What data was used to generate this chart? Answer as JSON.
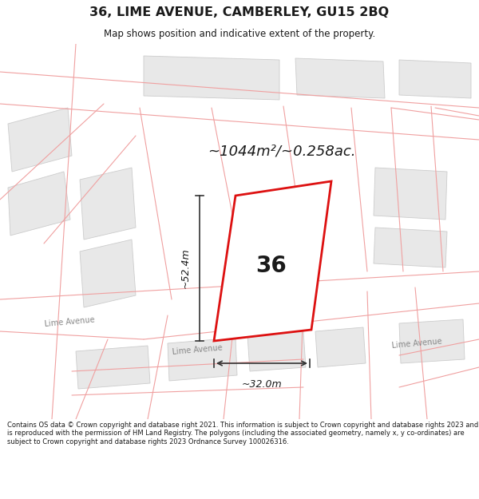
{
  "title": "36, LIME AVENUE, CAMBERLEY, GU15 2BQ",
  "subtitle": "Map shows position and indicative extent of the property.",
  "area_text": "~1044m²/~0.258ac.",
  "plot_number": "36",
  "dim_width": "~32.0m",
  "dim_height": "~52.4m",
  "footer": "Contains OS data © Crown copyright and database right 2021. This information is subject to Crown copyright and database rights 2023 and is reproduced with the permission of HM Land Registry. The polygons (including the associated geometry, namely x, y co-ordinates) are subject to Crown copyright and database rights 2023 Ordnance Survey 100026316.",
  "map_bg": "#ffffff",
  "plot_fill": "#ffffff",
  "plot_edge": "#dd1111",
  "building_fill": "#e8e8e8",
  "building_edge": "#cccccc",
  "road_line_color": "#f0a0a0",
  "dim_line_color": "#333333",
  "text_color": "#1a1a1a",
  "street_label_color": "#888888"
}
